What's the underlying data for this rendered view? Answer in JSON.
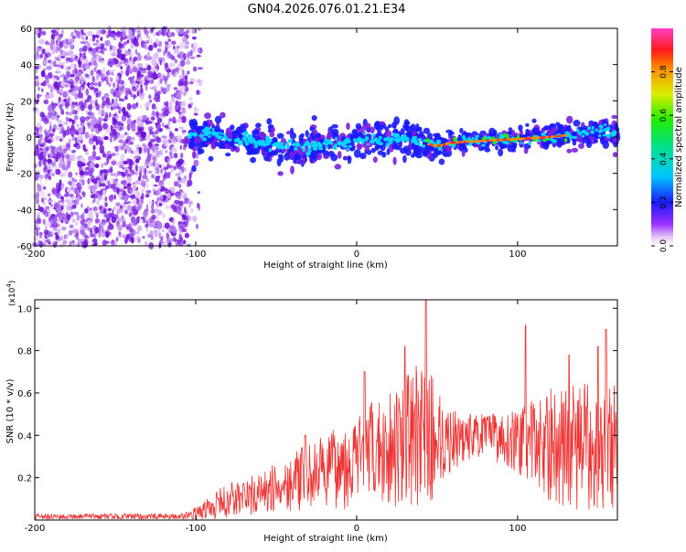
{
  "title": "GN04.2026.076.01.21.E34",
  "chart_data": [
    {
      "type": "heatmap",
      "xlabel": "Height of straight line (km)",
      "ylabel": "Frequency (Hz)",
      "xlim": [
        -200,
        162
      ],
      "ylim": [
        -60,
        60
      ],
      "xticks": [
        -200,
        -100,
        0,
        100
      ],
      "yticks": [
        -60,
        -40,
        -20,
        0,
        20,
        40,
        60
      ],
      "noise_region_x": [
        -200,
        -105
      ],
      "signal_region_x": [
        -105,
        162
      ],
      "ridge": [
        {
          "x": -105,
          "f": 0
        },
        {
          "x": -90,
          "f": 2
        },
        {
          "x": -80,
          "f": 0
        },
        {
          "x": -60,
          "f": -3
        },
        {
          "x": -40,
          "f": -6
        },
        {
          "x": -20,
          "f": -4
        },
        {
          "x": 0,
          "f": -2
        },
        {
          "x": 20,
          "f": -1
        },
        {
          "x": 30,
          "f": 0
        },
        {
          "x": 40,
          "f": -3
        },
        {
          "x": 50,
          "f": -5
        },
        {
          "x": 60,
          "f": -3
        },
        {
          "x": 80,
          "f": -2
        },
        {
          "x": 100,
          "f": -1
        },
        {
          "x": 120,
          "f": 0
        },
        {
          "x": 140,
          "f": 2
        },
        {
          "x": 162,
          "f": 3
        }
      ],
      "colorbar": {
        "label": "Normalized spectral amplitude",
        "range": [
          0,
          1
        ],
        "ticks": [
          "0.0",
          "0.2",
          "0.4",
          "0.6",
          "0.8"
        ]
      }
    },
    {
      "type": "line",
      "series_name": "SNR",
      "color": "#ee3333",
      "xlabel": "Height of straight line (km)",
      "ylabel": "SNR (10 * v/v)",
      "scale_label": "(x10",
      "scale_exp": "4",
      "xlim": [
        -200,
        162
      ],
      "ylim": [
        0,
        1.04
      ],
      "xticks": [
        -200,
        -100,
        0,
        100
      ],
      "yticks": [
        "0.2",
        "0.4",
        "0.6",
        "0.8",
        "1.0"
      ],
      "envelope": [
        {
          "x": -200,
          "lo": 0.0,
          "hi": 0.03
        },
        {
          "x": -110,
          "lo": 0.0,
          "hi": 0.03
        },
        {
          "x": -100,
          "lo": 0.0,
          "hi": 0.06
        },
        {
          "x": -80,
          "lo": 0.0,
          "hi": 0.18
        },
        {
          "x": -60,
          "lo": 0.02,
          "hi": 0.22
        },
        {
          "x": -40,
          "lo": 0.04,
          "hi": 0.32
        },
        {
          "x": -20,
          "lo": 0.05,
          "hi": 0.4
        },
        {
          "x": 0,
          "lo": 0.05,
          "hi": 0.5
        },
        {
          "x": 20,
          "lo": 0.06,
          "hi": 0.62
        },
        {
          "x": 40,
          "lo": 0.06,
          "hi": 0.75
        },
        {
          "x": 50,
          "lo": 0.08,
          "hi": 0.66
        },
        {
          "x": 60,
          "lo": 0.24,
          "hi": 0.52
        },
        {
          "x": 80,
          "lo": 0.3,
          "hi": 0.5
        },
        {
          "x": 100,
          "lo": 0.22,
          "hi": 0.52
        },
        {
          "x": 120,
          "lo": 0.08,
          "hi": 0.62
        },
        {
          "x": 140,
          "lo": 0.04,
          "hi": 0.65
        },
        {
          "x": 162,
          "lo": 0.05,
          "hi": 0.65
        }
      ],
      "peaks": [
        {
          "x": 43,
          "y": 1.04
        },
        {
          "x": 30,
          "y": 0.82
        },
        {
          "x": 5,
          "y": 0.7
        },
        {
          "x": 105,
          "y": 0.92
        },
        {
          "x": 155,
          "y": 0.9
        },
        {
          "x": -32,
          "y": 0.4
        },
        {
          "x": 150,
          "y": 0.82
        },
        {
          "x": 132,
          "y": 0.78
        }
      ]
    }
  ]
}
